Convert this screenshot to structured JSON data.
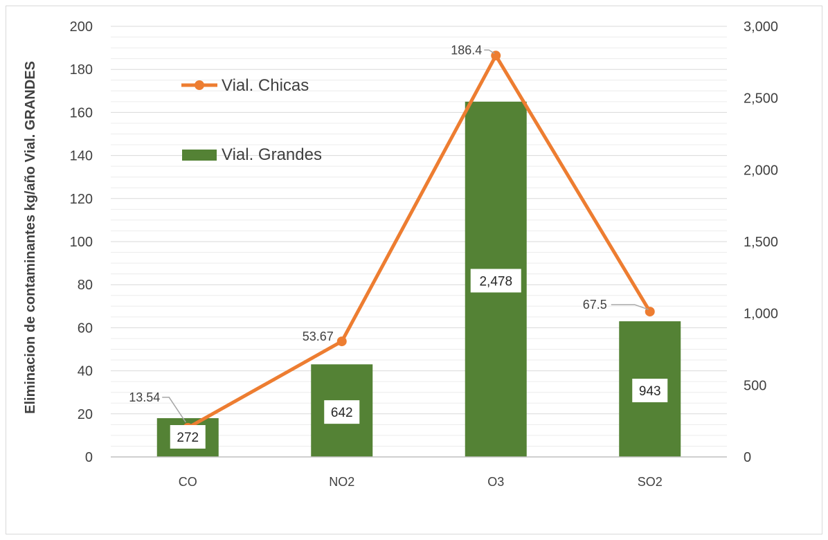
{
  "chart_data": {
    "type": "bar",
    "categories": [
      "CO",
      "NO2",
      "O3",
      "SO2"
    ],
    "ylabel": "Eliminacion de contaminantes kg/año Vial. GRANDES",
    "ylim": [
      0,
      200
    ],
    "y_ticks": [
      "0",
      "20",
      "40",
      "60",
      "80",
      "100",
      "120",
      "140",
      "160",
      "180",
      "200"
    ],
    "y2lim": [
      0,
      3000
    ],
    "y2_ticks": [
      "0",
      "500",
      "1,000",
      "1,500",
      "2,000",
      "2,500",
      "3,000"
    ],
    "grid": true,
    "legend_position": "top-left",
    "series": [
      {
        "name": "Vial. Grandes",
        "type": "bar",
        "axis": "left",
        "color": "#548235",
        "values": [
          18,
          43,
          165,
          63
        ],
        "labels": [
          "272",
          "642",
          "2,478",
          "943"
        ]
      },
      {
        "name": "Vial. Chicas",
        "type": "line",
        "axis": "right",
        "color": "#ED7D31",
        "values": [
          203,
          805,
          2796,
          1012.5
        ],
        "labels": [
          "13.54",
          "53.67",
          "186.4",
          "67.5"
        ]
      }
    ]
  }
}
